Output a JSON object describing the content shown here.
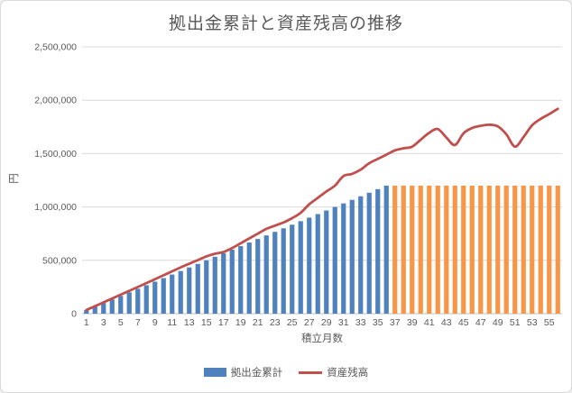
{
  "title": "拠出金累計と資産残高の推移",
  "y_axis": {
    "title": "円",
    "tick_values": [
      0,
      500000,
      1000000,
      1500000,
      2000000,
      2500000
    ],
    "tick_labels": [
      "0",
      "500,000",
      "1,000,000",
      "1,500,000",
      "2,000,000",
      "2,500,000"
    ]
  },
  "x_axis": {
    "title": "積立月数",
    "tick_months": [
      1,
      3,
      5,
      7,
      9,
      11,
      13,
      15,
      17,
      19,
      21,
      23,
      25,
      27,
      29,
      31,
      33,
      35,
      37,
      39,
      41,
      43,
      45,
      47,
      49,
      51,
      53,
      55
    ]
  },
  "legend": [
    {
      "label": "拠出金累計",
      "type": "bar",
      "color": "#4F81BD"
    },
    {
      "label": "資産残高",
      "type": "line",
      "color": "#C0504D"
    }
  ],
  "colors": {
    "bar_contribution_phase": "#4F81BD",
    "bar_after_contribution": "#F79646",
    "line": "#C0504D",
    "gridline": "#D9D9D9",
    "axis_line": "#BFBFBF",
    "text": "#595959"
  },
  "chart_data": {
    "type": "combo-bar-line",
    "title": "拠出金累計と資産残高の推移",
    "xlabel": "積立月数",
    "ylabel": "円",
    "ylim": [
      0,
      2500000
    ],
    "grid": "horizontal",
    "legend_position": "bottom",
    "months": [
      1,
      2,
      3,
      4,
      5,
      6,
      7,
      8,
      9,
      10,
      11,
      12,
      13,
      14,
      15,
      16,
      17,
      18,
      19,
      20,
      21,
      22,
      23,
      24,
      25,
      26,
      27,
      28,
      29,
      30,
      31,
      32,
      33,
      34,
      35,
      36,
      37,
      38,
      39,
      40,
      41,
      42,
      43,
      44,
      45,
      46,
      47,
      48,
      49,
      50,
      51,
      52,
      53,
      54,
      55,
      56
    ],
    "blue_bar_last_month": 36,
    "series": [
      {
        "name": "拠出金累計",
        "type": "bar",
        "values": [
          33333,
          66667,
          100000,
          133333,
          166667,
          200000,
          233333,
          266667,
          300000,
          333333,
          366667,
          400000,
          433333,
          466667,
          500000,
          533333,
          566667,
          600000,
          633333,
          666667,
          700000,
          733333,
          766667,
          800000,
          833333,
          866667,
          900000,
          933333,
          966667,
          1000000,
          1033333,
          1066667,
          1100000,
          1133333,
          1166667,
          1200000,
          1200000,
          1200000,
          1200000,
          1200000,
          1200000,
          1200000,
          1200000,
          1200000,
          1200000,
          1200000,
          1200000,
          1200000,
          1200000,
          1200000,
          1200000,
          1200000,
          1200000,
          1200000,
          1200000,
          1200000
        ]
      },
      {
        "name": "資産残高",
        "type": "line",
        "smooth": true,
        "values": [
          35000,
          70000,
          106000,
          142000,
          178000,
          214000,
          250000,
          287000,
          323000,
          360000,
          397000,
          434000,
          468000,
          502000,
          537000,
          562000,
          578000,
          615000,
          660000,
          705000,
          750000,
          795000,
          825000,
          855000,
          895000,
          945000,
          1025000,
          1085000,
          1145000,
          1200000,
          1290000,
          1310000,
          1350000,
          1410000,
          1450000,
          1490000,
          1530000,
          1550000,
          1565000,
          1630000,
          1695000,
          1730000,
          1650000,
          1580000,
          1690000,
          1740000,
          1760000,
          1770000,
          1755000,
          1680000,
          1565000,
          1655000,
          1765000,
          1825000,
          1870000,
          1920000
        ]
      }
    ]
  }
}
